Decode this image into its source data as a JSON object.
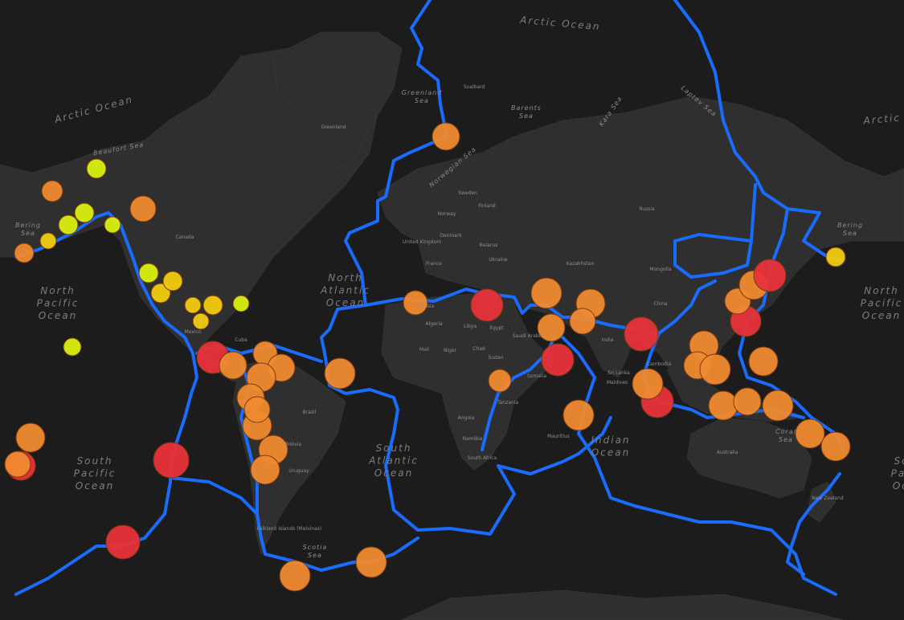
{
  "map": {
    "oceans": [
      {
        "lines": [
          "Arctic Ocean"
        ]
      },
      {
        "lines": [
          "Arctic Ocean"
        ]
      },
      {
        "lines": [
          "Arctic Ocean"
        ]
      },
      {
        "lines": [
          "North",
          "Pacific",
          "Ocean"
        ]
      },
      {
        "lines": [
          "North",
          "Pacific",
          "Ocean"
        ]
      },
      {
        "lines": [
          "North",
          "Atlantic",
          "Ocean"
        ]
      },
      {
        "lines": [
          "South",
          "Atlantic",
          "Ocean"
        ]
      },
      {
        "lines": [
          "South",
          "Pacific",
          "Ocean"
        ]
      },
      {
        "lines": [
          "Indian",
          "Ocean"
        ]
      },
      {
        "lines": [
          "South",
          "Pacific",
          "Ocean"
        ]
      }
    ],
    "seas": [
      {
        "lines": [
          "Greenland",
          "Sea"
        ]
      },
      {
        "lines": [
          "Barents",
          "Sea"
        ]
      },
      {
        "lines": [
          "Norwegian Sea"
        ]
      },
      {
        "lines": [
          "Laptev Sea"
        ]
      },
      {
        "lines": [
          "Kara Sea"
        ]
      },
      {
        "lines": [
          "Beaufort Sea"
        ]
      },
      {
        "lines": [
          "Bering",
          "Sea"
        ]
      },
      {
        "lines": [
          "Bering",
          "Sea"
        ]
      },
      {
        "lines": [
          "Coral",
          "Sea"
        ]
      },
      {
        "lines": [
          "Scotia",
          "Sea"
        ]
      }
    ],
    "places": [
      "Greenland",
      "Svalbard",
      "Canada",
      "Sweden",
      "Finland",
      "Norway",
      "United Kingdom",
      "Denmark",
      "Belarus",
      "Ukraine",
      "France",
      "Russia",
      "Kazakhstan",
      "Mongolia",
      "China",
      "India",
      "Sri Lanka",
      "Maldives",
      "Cambodia",
      "Algeria",
      "Libya",
      "Egypt",
      "Tunisia",
      "Mali",
      "Niger",
      "Chad",
      "Sudan",
      "Saudi Arabia",
      "Somalia",
      "Tanzania",
      "Angola",
      "Namibia",
      "South Africa",
      "Mauritius",
      "Brazil",
      "Bolivia",
      "Uruguay",
      "Mexico",
      "Cuba",
      "Australia",
      "New Zealand",
      "Falkland Islands (Malvinas)"
    ]
  }
}
